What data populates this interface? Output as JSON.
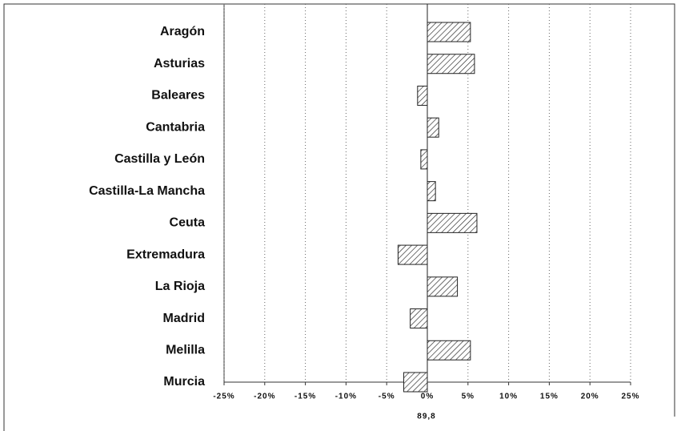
{
  "chart_data": {
    "type": "hbar",
    "categories": [
      "Aragón",
      "Asturias",
      "Baleares",
      "Cantabria",
      "Castilla y León",
      "Castilla-La Mancha",
      "Ceuta",
      "Extremadura",
      "La Rioja",
      "Madrid",
      "Melilla",
      "Murcia"
    ],
    "values": [
      5.3,
      5.8,
      -1.2,
      1.4,
      -0.8,
      1.0,
      6.1,
      -3.6,
      3.7,
      -2.1,
      5.3,
      -2.9
    ],
    "xlabel": "89,8",
    "xlim": [
      -25,
      25
    ],
    "xticks": [
      {
        "value": -25,
        "label": "-25%"
      },
      {
        "value": -20,
        "label": "-20%"
      },
      {
        "value": -15,
        "label": "-15%"
      },
      {
        "value": -10,
        "label": "-10%"
      },
      {
        "value": -5,
        "label": "-5%"
      },
      {
        "value": 0,
        "label": "0%"
      },
      {
        "value": 5,
        "label": "5%"
      },
      {
        "value": 10,
        "label": "10%"
      },
      {
        "value": 15,
        "label": "15%"
      },
      {
        "value": 20,
        "label": "20%"
      },
      {
        "value": 25,
        "label": "25%"
      }
    ],
    "grid": true,
    "color": "#222222"
  }
}
